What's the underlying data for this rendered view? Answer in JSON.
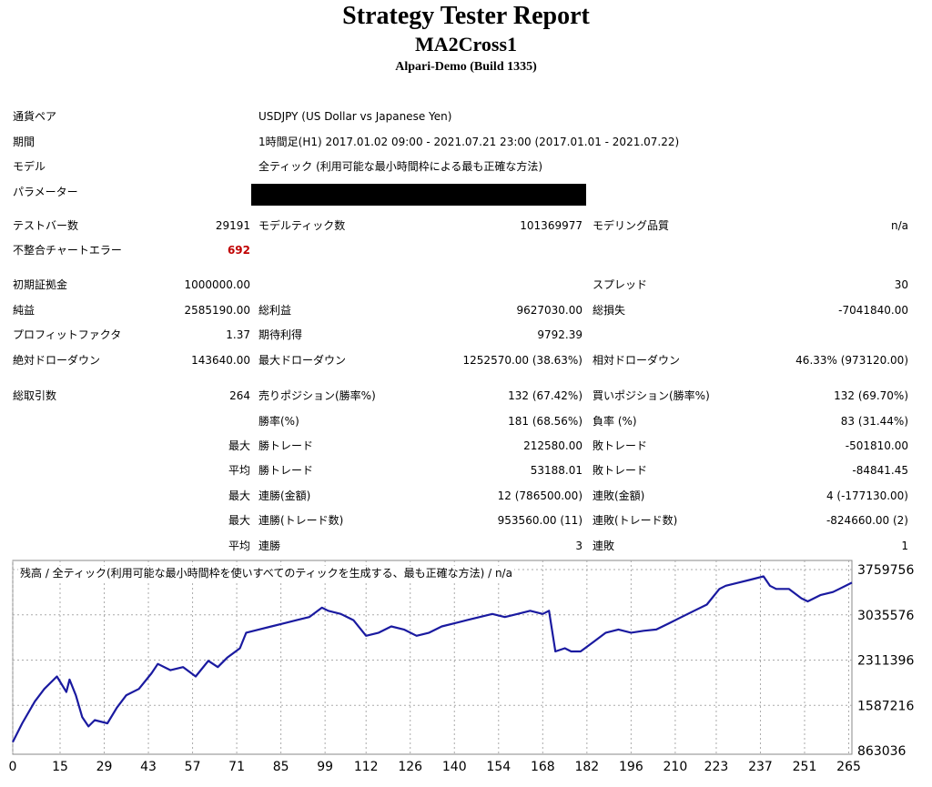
{
  "header": {
    "title": "Strategy Tester Report",
    "expert": "MA2Cross1",
    "server": "Alpari-Demo (Build 1335)"
  },
  "info": {
    "symbol_label": "通貨ペア",
    "symbol": "USDJPY (US Dollar vs Japanese Yen)",
    "period_label": "期間",
    "period": "1時間足(H1) 2017.01.02 09:00 - 2021.07.21 23:00 (2017.01.01 - 2021.07.22)",
    "model_label": "モデル",
    "model": "全ティック (利用可能な最小時間枠による最も正確な方法)",
    "params_label": "パラメーター"
  },
  "stats": {
    "bars_label": "テストバー数",
    "bars": "29191",
    "ticks_label": "モデルティック数",
    "ticks": "101369977",
    "quality_label": "モデリング品質",
    "quality": "n/a",
    "mismatch_label": "不整合チャートエラー",
    "mismatch": "692",
    "deposit_label": "初期証拠金",
    "deposit": "1000000.00",
    "spread_label": "スプレッド",
    "spread": "30",
    "net_label": "純益",
    "net": "2585190.00",
    "gross_profit_label": "総利益",
    "gross_profit": "9627030.00",
    "gross_loss_label": "総損失",
    "gross_loss": "-7041840.00",
    "pf_label": "プロフィットファクタ",
    "pf": "1.37",
    "payoff_label": "期待利得",
    "payoff": "9792.39",
    "abs_dd_label": "絶対ドローダウン",
    "abs_dd": "143640.00",
    "max_dd_label": "最大ドローダウン",
    "max_dd": "1252570.00 (38.63%)",
    "rel_dd_label": "相対ドローダウン",
    "rel_dd": "46.33% (973120.00)",
    "trades_label": "総取引数",
    "trades": "264",
    "short_label": "売りポジション(勝率%)",
    "short": "132 (67.42%)",
    "long_label": "買いポジション(勝率%)",
    "long": "132 (69.70%)",
    "win_label": "勝率(%)",
    "win": "181 (68.56%)",
    "loss_label": "負率 (%)",
    "loss": "83 (31.44%)",
    "max_label": "最大",
    "avg_label": "平均",
    "win_trade_label": "勝トレード",
    "lose_trade_label": "敗トレード",
    "max_win": "212580.00",
    "max_loss": "-501810.00",
    "avg_win": "53188.01",
    "avg_loss": "-84841.45",
    "cons_win_amt_label": "連勝(金額)",
    "cons_win_amt": "12 (786500.00)",
    "cons_loss_amt_label": "連敗(金額)",
    "cons_loss_amt": "4 (-177130.00)",
    "cons_win_cnt_label": "連勝(トレード数)",
    "cons_win_cnt": "953560.00 (11)",
    "cons_loss_cnt_label": "連敗(トレード数)",
    "cons_loss_cnt": "-824660.00 (2)",
    "avg_cons_win_label": "連勝",
    "avg_cons_win": "3",
    "avg_cons_loss_label": "連敗",
    "avg_cons_loss": "1"
  },
  "chart_data": {
    "type": "line",
    "title": "残高 / 全ティック(利用可能な最小時間枠を使いすべてのティックを生成する、最も正確な方法) / n/a",
    "x_ticks": [
      0,
      15,
      29,
      43,
      57,
      71,
      85,
      99,
      112,
      126,
      140,
      154,
      168,
      182,
      196,
      210,
      223,
      237,
      251,
      265
    ],
    "y_ticks": [
      "3759756",
      "3035576",
      "2311396",
      "1587216",
      "863036"
    ],
    "xlim": [
      0,
      266
    ],
    "ylim": [
      863036,
      3759756
    ],
    "color": "#1a1aa0",
    "series": [
      {
        "x": [
          0,
          3,
          7,
          10,
          14,
          17,
          18,
          20,
          22,
          24,
          26,
          30,
          33,
          36,
          40,
          44,
          46,
          50,
          54,
          58,
          62,
          65,
          68,
          72,
          74,
          78,
          82,
          86,
          90,
          94,
          98,
          100,
          104,
          108,
          112,
          116,
          120,
          124,
          128,
          132,
          136,
          140,
          144,
          148,
          152,
          156,
          160,
          164,
          168,
          170,
          172,
          175,
          177,
          180,
          184,
          188,
          192,
          196,
          200,
          204,
          208,
          212,
          216,
          220,
          224,
          226,
          230,
          234,
          238,
          240,
          242,
          246,
          250,
          252,
          256,
          260,
          262,
          266
        ],
        "y": [
          1000000,
          1300000,
          1650000,
          1850000,
          2050000,
          1800000,
          2000000,
          1750000,
          1400000,
          1250000,
          1350000,
          1300000,
          1550000,
          1750000,
          1850000,
          2100000,
          2250000,
          2150000,
          2200000,
          2050000,
          2300000,
          2200000,
          2350000,
          2500000,
          2750000,
          2800000,
          2850000,
          2900000,
          2950000,
          3000000,
          3150000,
          3100000,
          3050000,
          2950000,
          2700000,
          2750000,
          2850000,
          2800000,
          2700000,
          2750000,
          2850000,
          2900000,
          2950000,
          3000000,
          3050000,
          3000000,
          3050000,
          3100000,
          3050000,
          3100000,
          2450000,
          2500000,
          2450000,
          2450000,
          2600000,
          2750000,
          2800000,
          2750000,
          2780000,
          2800000,
          2900000,
          3000000,
          3100000,
          3200000,
          3450000,
          3500000,
          3550000,
          3600000,
          3650000,
          3500000,
          3450000,
          3450000,
          3300000,
          3250000,
          3350000,
          3400000,
          3450000,
          3550000
        ]
      }
    ]
  }
}
